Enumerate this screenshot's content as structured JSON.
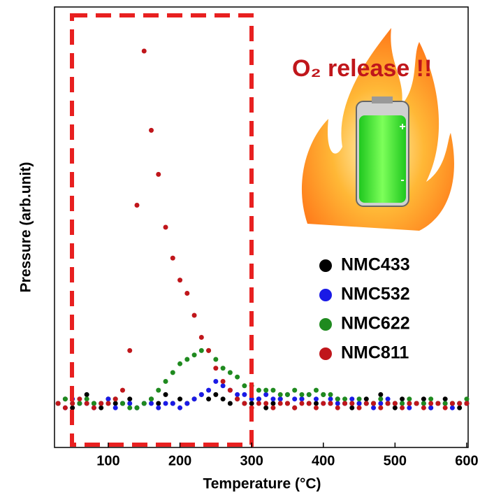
{
  "chart_data": {
    "type": "scatter",
    "xlabel": "Temperature (°C)",
    "ylabel": "Pressure (arb.unit)",
    "annotation": "O₂ release !!",
    "xlim": [
      25,
      602
    ],
    "xticks": [
      100,
      200,
      300,
      400,
      500,
      600
    ],
    "ylim": [
      0,
      1
    ],
    "x": [
      30,
      40,
      50,
      60,
      70,
      80,
      90,
      100,
      110,
      120,
      130,
      140,
      150,
      160,
      170,
      180,
      190,
      200,
      210,
      220,
      230,
      240,
      250,
      260,
      270,
      280,
      290,
      300,
      310,
      320,
      330,
      340,
      350,
      360,
      370,
      380,
      390,
      400,
      410,
      420,
      430,
      440,
      450,
      460,
      470,
      480,
      490,
      500,
      510,
      520,
      530,
      540,
      550,
      560,
      570,
      580,
      590,
      600
    ],
    "series": [
      {
        "name": "NMC433",
        "color": "#000000",
        "values": [
          0.1,
          0.11,
          0.09,
          0.1,
          0.12,
          0.1,
          0.09,
          0.11,
          0.1,
          0.1,
          0.11,
          0.09,
          0.1,
          0.11,
          0.1,
          0.12,
          0.1,
          0.11,
          0.1,
          0.11,
          0.12,
          0.11,
          0.12,
          0.11,
          0.1,
          0.11,
          0.1,
          0.1,
          0.11,
          0.09,
          0.1,
          0.11,
          0.1,
          0.09,
          0.11,
          0.1,
          0.1,
          0.12,
          0.1,
          0.11,
          0.1,
          0.09,
          0.1,
          0.11,
          0.1,
          0.12,
          0.1,
          0.09,
          0.11,
          0.1,
          0.1,
          0.11,
          0.09,
          0.1,
          0.11,
          0.1,
          0.09,
          0.1
        ]
      },
      {
        "name": "NMC532",
        "color": "#1a1ae6",
        "values": [
          0.1,
          0.09,
          0.11,
          0.1,
          0.1,
          0.09,
          0.1,
          0.11,
          0.09,
          0.1,
          0.1,
          0.09,
          0.1,
          0.1,
          0.09,
          0.1,
          0.1,
          0.09,
          0.1,
          0.11,
          0.12,
          0.13,
          0.15,
          0.14,
          0.13,
          0.12,
          0.12,
          0.11,
          0.11,
          0.12,
          0.11,
          0.11,
          0.12,
          0.11,
          0.11,
          0.12,
          0.11,
          0.1,
          0.11,
          0.1,
          0.1,
          0.11,
          0.1,
          0.1,
          0.09,
          0.1,
          0.11,
          0.1,
          0.1,
          0.09,
          0.1,
          0.1,
          0.09,
          0.1,
          0.1,
          0.09,
          0.1,
          0.1
        ]
      },
      {
        "name": "NMC622",
        "color": "#1f8a1f",
        "values": [
          0.1,
          0.11,
          0.1,
          0.1,
          0.11,
          0.1,
          0.1,
          0.1,
          0.11,
          0.1,
          0.09,
          0.09,
          0.1,
          0.11,
          0.13,
          0.15,
          0.17,
          0.19,
          0.2,
          0.21,
          0.22,
          0.22,
          0.2,
          0.18,
          0.17,
          0.16,
          0.14,
          0.14,
          0.13,
          0.13,
          0.13,
          0.12,
          0.12,
          0.13,
          0.12,
          0.12,
          0.13,
          0.12,
          0.12,
          0.11,
          0.11,
          0.1,
          0.11,
          0.1,
          0.1,
          0.11,
          0.1,
          0.1,
          0.1,
          0.11,
          0.1,
          0.1,
          0.11,
          0.1,
          0.1,
          0.1,
          0.1,
          0.11
        ]
      },
      {
        "name": "NMC811",
        "color": "#c0161b",
        "values": [
          0.1,
          0.09,
          0.1,
          0.11,
          0.1,
          0.09,
          0.1,
          0.1,
          0.11,
          0.13,
          0.22,
          0.55,
          0.9,
          0.72,
          0.62,
          0.5,
          0.43,
          0.38,
          0.35,
          0.3,
          0.25,
          0.22,
          0.18,
          0.15,
          0.13,
          0.11,
          0.1,
          0.09,
          0.1,
          0.1,
          0.09,
          0.1,
          0.1,
          0.09,
          0.1,
          0.1,
          0.09,
          0.1,
          0.1,
          0.09,
          0.1,
          0.1,
          0.09,
          0.1,
          0.1,
          0.09,
          0.1,
          0.1,
          0.09,
          0.1,
          0.1,
          0.09,
          0.1,
          0.1,
          0.09,
          0.1,
          0.1,
          0.1
        ]
      }
    ]
  }
}
